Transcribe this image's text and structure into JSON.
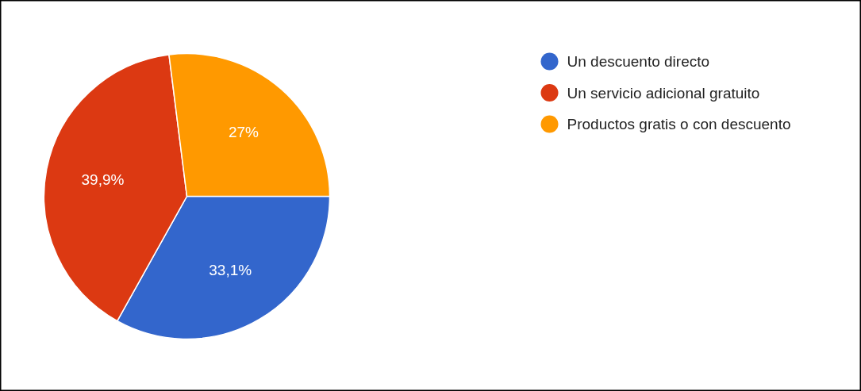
{
  "chart_data": {
    "type": "pie",
    "categories": [
      "Un descuento directo",
      "Un servicio adicional gratuito",
      "Productos gratis o con descuento"
    ],
    "values": [
      33.1,
      39.9,
      27
    ],
    "colors": [
      "#3366cc",
      "#dc3912",
      "#ff9900"
    ],
    "value_labels": [
      "33,1%",
      "39,9%",
      "27%"
    ],
    "legend": "right"
  }
}
